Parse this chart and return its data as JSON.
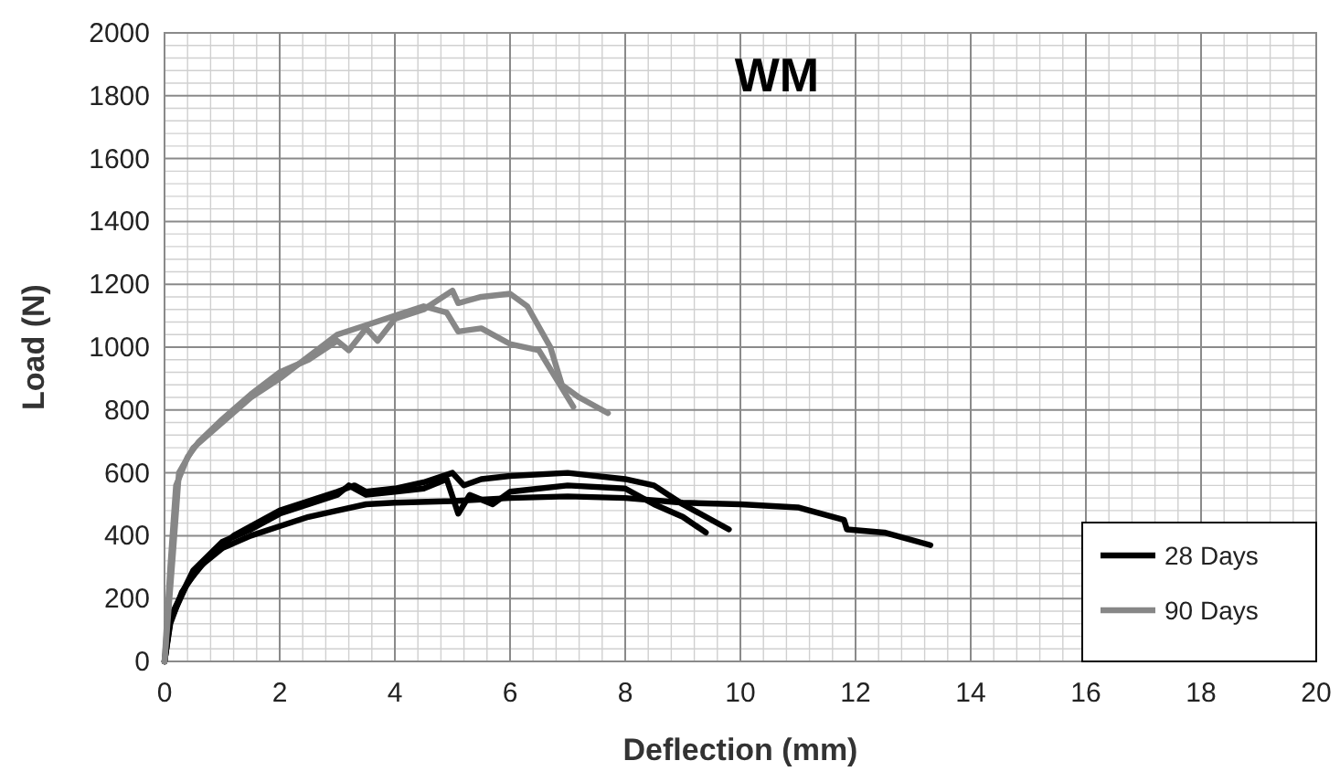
{
  "chart_data": {
    "type": "line",
    "title": "WM",
    "xlabel": "Deflection (mm)",
    "ylabel": "Load (N)",
    "xlim": [
      0,
      20
    ],
    "xticks": [
      0,
      2,
      4,
      6,
      8,
      10,
      12,
      14,
      16,
      18,
      20
    ],
    "ylim": [
      0,
      2000
    ],
    "yticks": [
      0,
      200,
      400,
      600,
      800,
      1000,
      1200,
      1400,
      1600,
      1800,
      2000
    ],
    "grid": true,
    "legend": "bottom right",
    "line_style": "solid",
    "series": [
      {
        "name": "28 Days",
        "color": "#000000",
        "x": [
          0,
          0.1,
          0.3,
          0.6,
          1,
          1.5,
          2,
          2.5,
          3,
          3.5,
          4,
          5,
          6,
          7,
          8,
          9,
          10,
          11,
          11.8,
          11.85,
          12.5,
          13.3
        ],
        "values": [
          0,
          120,
          220,
          300,
          360,
          400,
          430,
          460,
          480,
          500,
          505,
          510,
          520,
          525,
          520,
          505,
          500,
          490,
          450,
          420,
          410,
          370
        ]
      },
      {
        "color": "#000000",
        "x": [
          0,
          0.1,
          0.4,
          0.8,
          1.2,
          1.6,
          2,
          2.5,
          3,
          3.3,
          3.5,
          4,
          4.5,
          5,
          5.2,
          5.5,
          6,
          7,
          8,
          8.5,
          9,
          9.8
        ],
        "values": [
          0,
          130,
          250,
          340,
          400,
          440,
          480,
          510,
          540,
          560,
          540,
          550,
          570,
          600,
          560,
          580,
          590,
          600,
          580,
          560,
          500,
          420
        ]
      },
      {
        "color": "#000000",
        "x": [
          0,
          0.1,
          0.5,
          1,
          1.5,
          2,
          2.5,
          3,
          3.2,
          3.5,
          4,
          4.5,
          4.9,
          5.1,
          5.3,
          5.7,
          6,
          7,
          8,
          8.5,
          9,
          9.4
        ],
        "values": [
          0,
          140,
          290,
          380,
          420,
          470,
          500,
          530,
          560,
          530,
          540,
          550,
          580,
          470,
          530,
          500,
          540,
          560,
          550,
          500,
          460,
          410
        ]
      },
      {
        "name": "90 Days",
        "color": "#878787",
        "x": [
          0,
          0.1,
          0.2,
          0.4,
          0.6,
          1,
          1.5,
          2,
          2.5,
          3,
          3.2,
          3.5,
          3.7,
          4,
          4.5,
          5,
          5.1,
          5.5,
          6,
          6.3,
          6.7,
          6.9,
          7.2,
          7.7
        ],
        "values": [
          0,
          300,
          560,
          650,
          700,
          770,
          850,
          920,
          960,
          1020,
          990,
          1060,
          1020,
          1090,
          1120,
          1180,
          1140,
          1160,
          1170,
          1130,
          1000,
          880,
          840,
          790
        ]
      },
      {
        "color": "#878787",
        "x": [
          0,
          0.15,
          0.25,
          0.5,
          1,
          1.5,
          2,
          2.5,
          3,
          3.5,
          4,
          4.5,
          4.9,
          5.1,
          5.5,
          6,
          6.5,
          6.8,
          7.1
        ],
        "values": [
          0,
          350,
          600,
          680,
          760,
          840,
          900,
          970,
          1040,
          1070,
          1100,
          1130,
          1110,
          1050,
          1060,
          1010,
          990,
          900,
          810
        ]
      }
    ]
  }
}
